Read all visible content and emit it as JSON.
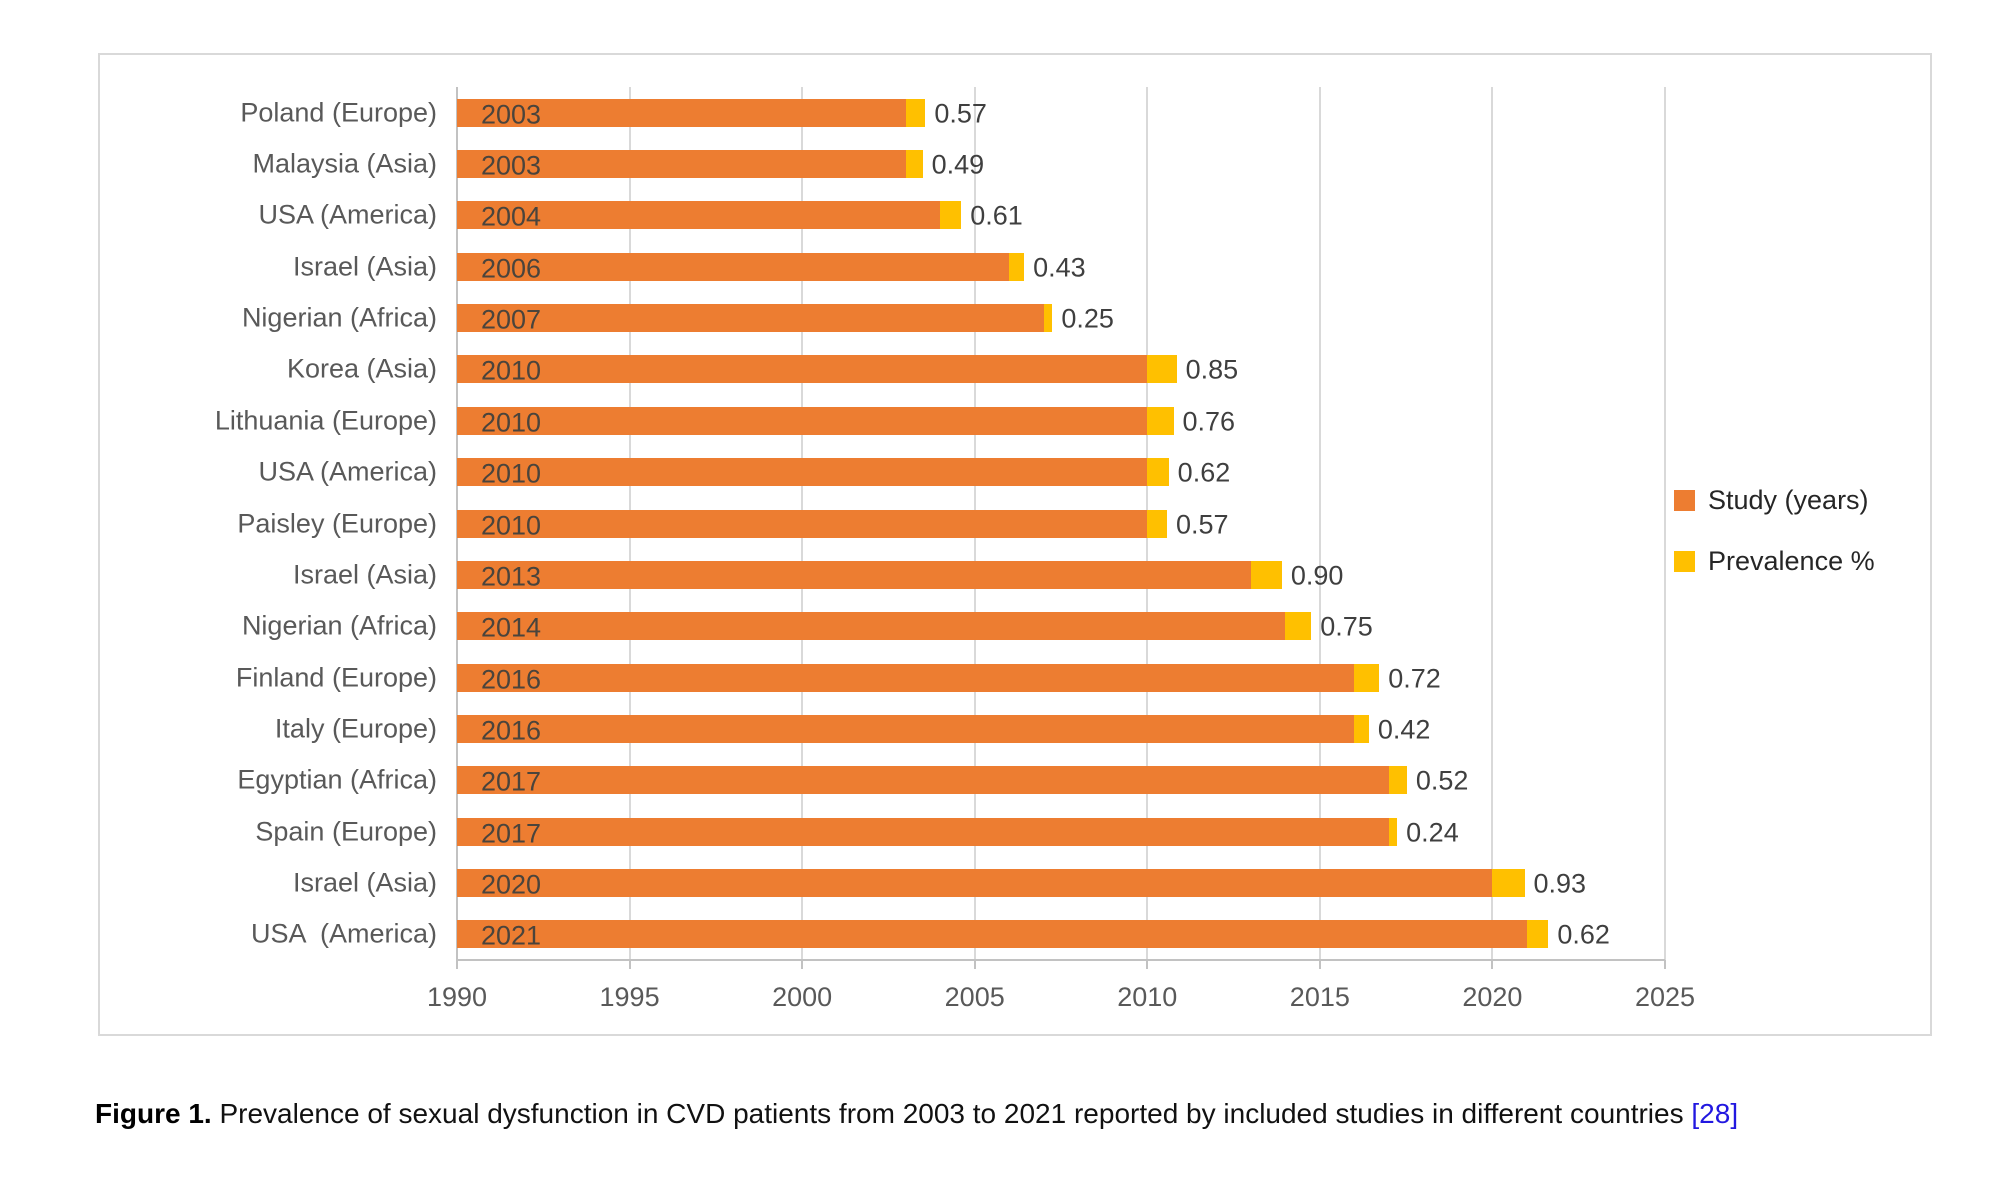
{
  "figure": {
    "caption": {
      "label": "Figure 1.",
      "text": " Prevalence of sexual dysfunction in CVD patients from 2003 to 2021 reported by included studies in different countries ",
      "reference": "[28]"
    }
  },
  "chart_data": {
    "type": "bar",
    "orientation": "horizontal",
    "stacked": true,
    "title": "",
    "xlabel": "",
    "ylabel": "",
    "grid": true,
    "legend_position": "right",
    "categories": [
      "Poland (Europe)",
      "Malaysia (Asia)",
      "USA (America)",
      "Israel (Asia)",
      "Nigerian (Africa)",
      "Korea (Asia)",
      "Lithuania (Europe)",
      "USA (America)",
      "Paisley (Europe)",
      "Israel (Asia)",
      "Nigerian (Africa)",
      "Finland (Europe)",
      "Italy (Europe)",
      "Egyptian (Africa)",
      "Spain (Europe)",
      "Israel (Asia)",
      "USA  (America)"
    ],
    "series": [
      {
        "name": "Study (years)",
        "color": "#ED7D31",
        "values": [
          2003,
          2003,
          2004,
          2006,
          2007,
          2010,
          2010,
          2010,
          2010,
          2013,
          2014,
          2016,
          2016,
          2017,
          2017,
          2020,
          2021
        ]
      },
      {
        "name": "Prevalence %",
        "color": "#FFC000",
        "values": [
          0.57,
          0.49,
          0.61,
          0.43,
          0.25,
          0.85,
          0.76,
          0.62,
          0.57,
          0.9,
          0.75,
          0.72,
          0.42,
          0.52,
          0.24,
          0.93,
          0.62
        ]
      }
    ],
    "x_axis": {
      "min": 1990,
      "max": 2025,
      "tick_step": 5,
      "ticks": [
        "1990",
        "1995",
        "2000",
        "2005",
        "2010",
        "2015",
        "2020",
        "2025"
      ]
    },
    "bar_labels": {
      "year_labels": [
        "2003",
        "2003",
        "2004",
        "2006",
        "2007",
        "2010",
        "2010",
        "2010",
        "2010",
        "2013",
        "2014",
        "2016",
        "2016",
        "2017",
        "2017",
        "2020",
        "2021"
      ],
      "prevalence_labels": [
        "0.57",
        "0.49",
        "0.61",
        "0.43",
        "0.25",
        "0.85",
        "0.76",
        "0.62",
        "0.57",
        "0.90",
        "0.75",
        "0.72",
        "0.42",
        "0.52",
        "0.24",
        "0.93",
        "0.62"
      ]
    },
    "colors": {
      "study_bar": "#ED7D31",
      "prevalence_bar": "#FFC000",
      "gridline": "#D9D9D9",
      "axis": "#C2C2C2",
      "axis_text": "#595959",
      "bar_text": "#4A443C",
      "value_text": "#3F3F3F",
      "reference_link": "#2218E0"
    }
  }
}
